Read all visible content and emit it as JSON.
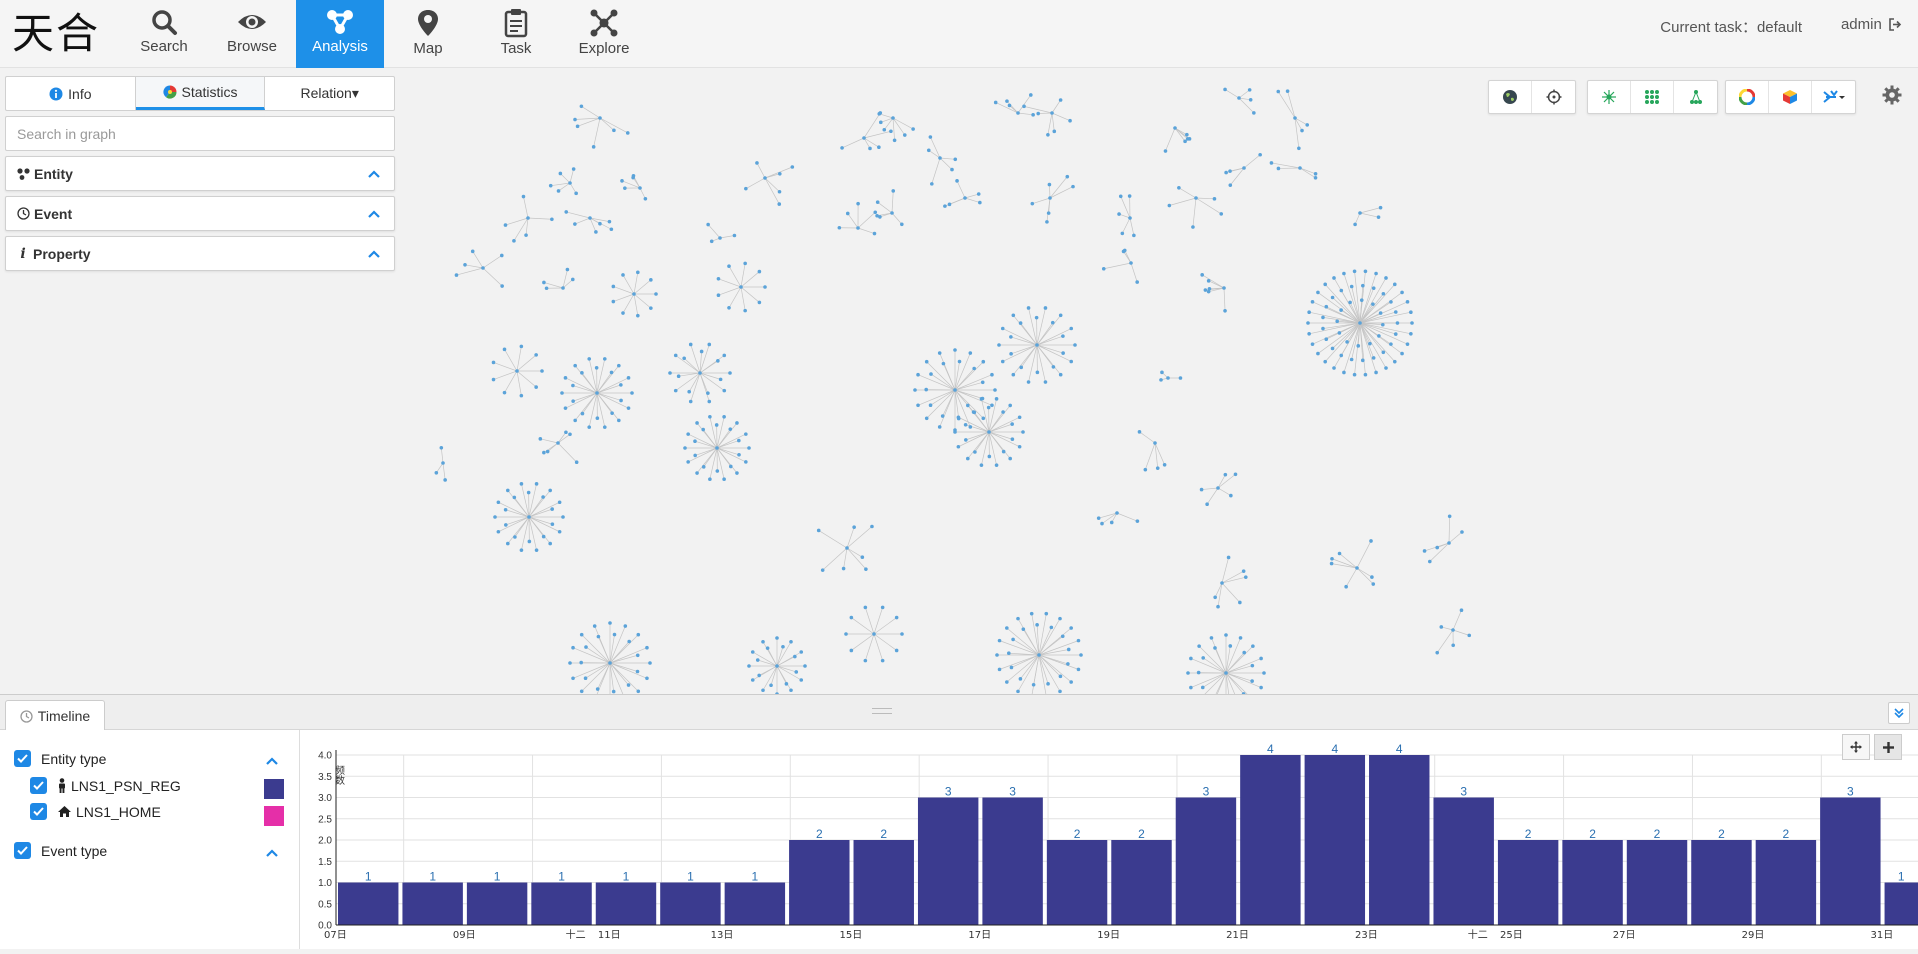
{
  "header": {
    "logo": "天合",
    "nav": [
      {
        "label": "Search",
        "icon": "search-icon"
      },
      {
        "label": "Browse",
        "icon": "eye-icon"
      },
      {
        "label": "Analysis",
        "icon": "analysis-icon",
        "active": true
      },
      {
        "label": "Map",
        "icon": "map-pin-icon"
      },
      {
        "label": "Task",
        "icon": "clipboard-icon"
      },
      {
        "label": "Explore",
        "icon": "explore-icon"
      }
    ],
    "current_task": "Current task：default",
    "user": "admin"
  },
  "side_panel": {
    "tabs": [
      {
        "label": "Info",
        "icon": "info-icon"
      },
      {
        "label": "Statistics",
        "icon": "pie-icon",
        "active": true
      },
      {
        "label": "Relation▾",
        "icon": ""
      }
    ],
    "search_placeholder": "Search in graph",
    "sections": [
      {
        "label": "Entity",
        "icon": "entity-icon"
      },
      {
        "label": "Event",
        "icon": "clock-icon"
      },
      {
        "label": "Property",
        "icon": "italic-info-icon"
      }
    ]
  },
  "graph_toolbar": {
    "groups": [
      [
        "globe-icon",
        "target-icon"
      ],
      [
        "cluster-layout-icon",
        "grid-layout-icon",
        "hierarchy-layout-icon"
      ],
      [
        "color-wheel-icon",
        "cube-icon",
        "tools-dropdown-icon"
      ]
    ],
    "settings_icon": "gear-icon"
  },
  "timeline": {
    "tab_label": "Timeline",
    "legend": {
      "entity_type_label": "Entity type",
      "entity_types": [
        {
          "label": "LNS1_PSN_REG",
          "icon": "person-icon",
          "color": "#3b3b8f"
        },
        {
          "label": "LNS1_HOME",
          "icon": "home-icon",
          "color": "#e52fa8"
        }
      ],
      "event_type_label": "Event type"
    }
  },
  "chart_data": {
    "type": "bar",
    "ylabel": "频数",
    "ylim": [
      0,
      4.0
    ],
    "yticks": [
      "0.0",
      "0.5",
      "1.0",
      "1.5",
      "2.0",
      "2.5",
      "3.0",
      "3.5",
      "4.0"
    ],
    "values": [
      1,
      1,
      1,
      1,
      1,
      1,
      1,
      2,
      2,
      3,
      3,
      2,
      2,
      3,
      4,
      4,
      4,
      3,
      2,
      2,
      2,
      2,
      2,
      3,
      1
    ],
    "xtick_labels": [
      "07日",
      "09日",
      "十二",
      "11日",
      "13日",
      "15日",
      "17日",
      "19日",
      "21日",
      "23日",
      "十二",
      "25日",
      "27日",
      "29日",
      "31日"
    ],
    "bar_color": "#3b3b8f",
    "label_color": "#2a6fb0"
  }
}
